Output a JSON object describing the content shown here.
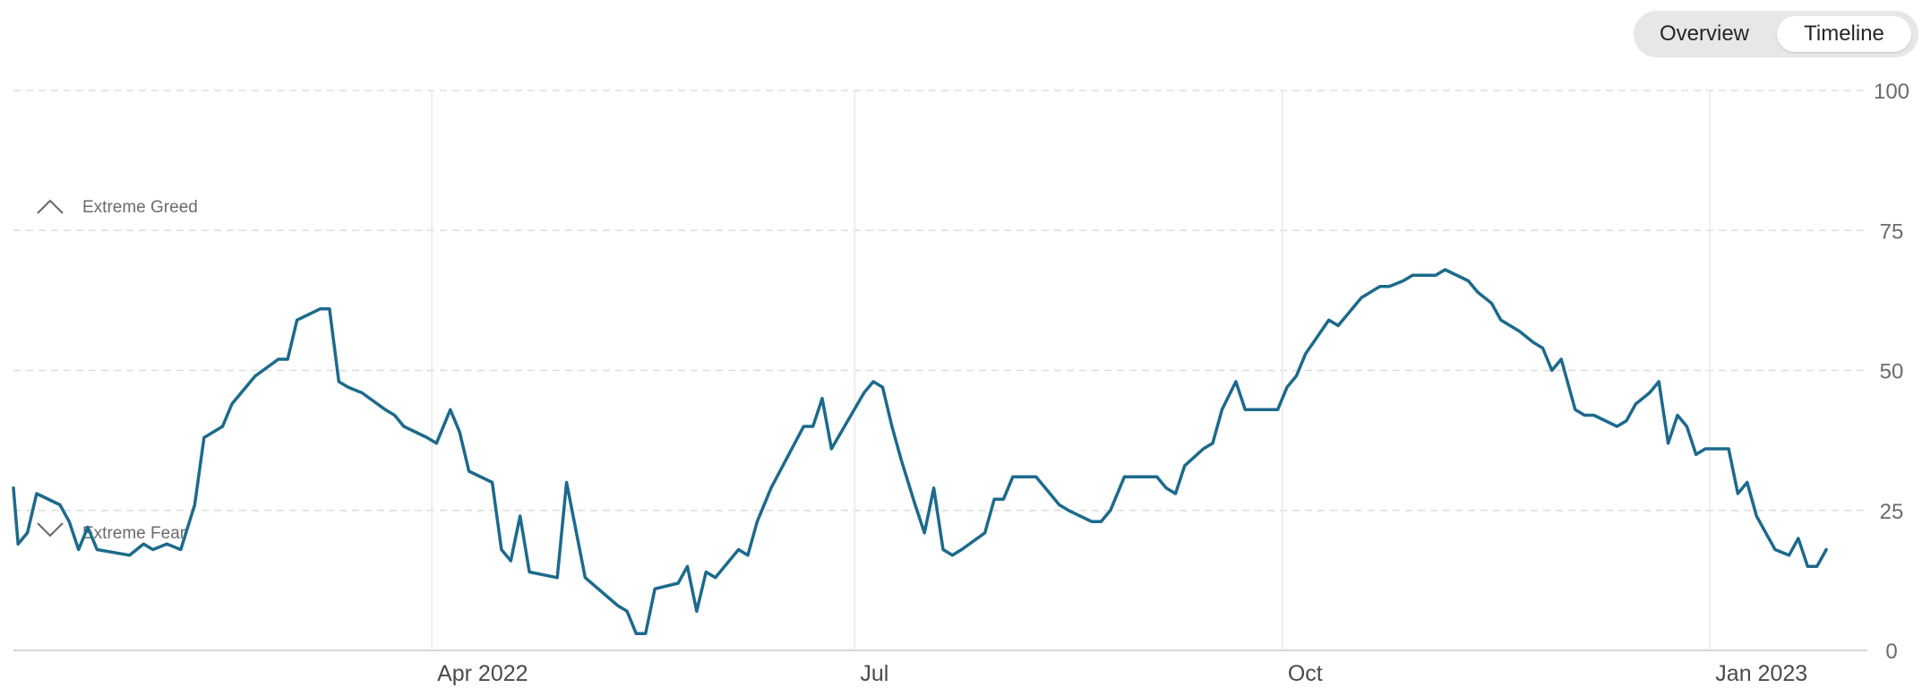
{
  "toggle": {
    "overview_label": "Overview",
    "timeline_label": "Timeline",
    "selected": "Timeline"
  },
  "colors": {
    "line": "#1c6a8c",
    "grid_dashed": "#dddddd",
    "grid_solid": "#e9e9e9",
    "axis": "#c9c9c9"
  },
  "annotations": {
    "greed_label": "Extreme Greed",
    "fear_label": "Extreme Fear"
  },
  "chart_data": {
    "type": "line",
    "title": "",
    "xlabel": "",
    "ylabel": "",
    "ylim": [
      0,
      100
    ],
    "xlim": [
      "2022-01-01",
      "2023-01-31"
    ],
    "y_ticks": [
      0,
      25,
      50,
      75,
      100
    ],
    "y_tick_labels": [
      "0",
      "25",
      "50",
      "75",
      "100"
    ],
    "x_ticks": [
      {
        "date": "2022-04-01",
        "label": "Apr 2022"
      },
      {
        "date": "2022-07-01",
        "label": "Jul"
      },
      {
        "date": "2022-10-01",
        "label": "Oct"
      },
      {
        "date": "2023-01-01",
        "label": "Jan 2023"
      }
    ],
    "grid": true,
    "series": [
      {
        "points": [
          [
            "2022-01-01",
            29
          ],
          [
            "2022-01-02",
            19
          ],
          [
            "2022-01-04",
            21
          ],
          [
            "2022-01-06",
            28
          ],
          [
            "2022-01-11",
            26
          ],
          [
            "2022-01-13",
            23
          ],
          [
            "2022-01-15",
            18
          ],
          [
            "2022-01-17",
            22
          ],
          [
            "2022-01-19",
            18
          ],
          [
            "2022-01-26",
            17
          ],
          [
            "2022-01-29",
            19
          ],
          [
            "2022-01-31",
            18
          ],
          [
            "2022-02-03",
            19
          ],
          [
            "2022-02-06",
            18
          ],
          [
            "2022-02-09",
            26
          ],
          [
            "2022-02-11",
            38
          ],
          [
            "2022-02-13",
            39
          ],
          [
            "2022-02-15",
            40
          ],
          [
            "2022-02-17",
            44
          ],
          [
            "2022-02-19",
            46
          ],
          [
            "2022-02-22",
            49
          ],
          [
            "2022-02-27",
            52
          ],
          [
            "2022-03-01",
            52
          ],
          [
            "2022-03-03",
            59
          ],
          [
            "2022-03-08",
            61
          ],
          [
            "2022-03-10",
            61
          ],
          [
            "2022-03-12",
            48
          ],
          [
            "2022-03-14",
            47
          ],
          [
            "2022-03-17",
            46
          ],
          [
            "2022-03-22",
            43
          ],
          [
            "2022-03-24",
            42
          ],
          [
            "2022-03-26",
            40
          ],
          [
            "2022-03-31",
            38
          ],
          [
            "2022-04-02",
            37
          ],
          [
            "2022-04-05",
            43
          ],
          [
            "2022-04-07",
            39
          ],
          [
            "2022-04-09",
            32
          ],
          [
            "2022-04-14",
            30
          ],
          [
            "2022-04-16",
            18
          ],
          [
            "2022-04-18",
            16
          ],
          [
            "2022-04-20",
            24
          ],
          [
            "2022-04-22",
            14
          ],
          [
            "2022-04-28",
            13
          ],
          [
            "2022-04-30",
            30
          ],
          [
            "2022-05-04",
            13
          ],
          [
            "2022-05-11",
            8
          ],
          [
            "2022-05-13",
            7
          ],
          [
            "2022-05-15",
            3
          ],
          [
            "2022-05-17",
            3
          ],
          [
            "2022-05-19",
            11
          ],
          [
            "2022-05-24",
            12
          ],
          [
            "2022-05-26",
            15
          ],
          [
            "2022-05-28",
            7
          ],
          [
            "2022-05-30",
            14
          ],
          [
            "2022-06-01",
            13
          ],
          [
            "2022-06-06",
            18
          ],
          [
            "2022-06-08",
            17
          ],
          [
            "2022-06-10",
            23
          ],
          [
            "2022-06-13",
            29
          ],
          [
            "2022-06-20",
            40
          ],
          [
            "2022-06-22",
            40
          ],
          [
            "2022-06-24",
            45
          ],
          [
            "2022-06-26",
            36
          ],
          [
            "2022-07-03",
            46
          ],
          [
            "2022-07-05",
            48
          ],
          [
            "2022-07-07",
            47
          ],
          [
            "2022-07-09",
            40
          ],
          [
            "2022-07-11",
            34
          ],
          [
            "2022-07-14",
            26
          ],
          [
            "2022-07-16",
            21
          ],
          [
            "2022-07-18",
            29
          ],
          [
            "2022-07-20",
            18
          ],
          [
            "2022-07-22",
            17
          ],
          [
            "2022-07-24",
            18
          ],
          [
            "2022-07-29",
            21
          ],
          [
            "2022-07-31",
            27
          ],
          [
            "2022-08-02",
            27
          ],
          [
            "2022-08-04",
            31
          ],
          [
            "2022-08-09",
            31
          ],
          [
            "2022-08-11",
            29
          ],
          [
            "2022-08-14",
            26
          ],
          [
            "2022-08-16",
            25
          ],
          [
            "2022-08-21",
            23
          ],
          [
            "2022-08-23",
            23
          ],
          [
            "2022-08-25",
            25
          ],
          [
            "2022-08-28",
            31
          ],
          [
            "2022-09-02",
            31
          ],
          [
            "2022-09-04",
            31
          ],
          [
            "2022-09-06",
            29
          ],
          [
            "2022-09-08",
            28
          ],
          [
            "2022-09-10",
            33
          ],
          [
            "2022-09-14",
            36
          ],
          [
            "2022-09-16",
            37
          ],
          [
            "2022-09-18",
            43
          ],
          [
            "2022-09-21",
            48
          ],
          [
            "2022-09-23",
            43
          ],
          [
            "2022-09-28",
            43
          ],
          [
            "2022-09-30",
            43
          ],
          [
            "2022-10-02",
            47
          ],
          [
            "2022-10-04",
            49
          ],
          [
            "2022-10-06",
            53
          ],
          [
            "2022-10-11",
            59
          ],
          [
            "2022-10-13",
            58
          ],
          [
            "2022-10-15",
            60
          ],
          [
            "2022-10-18",
            63
          ],
          [
            "2022-10-20",
            64
          ],
          [
            "2022-10-22",
            65
          ],
          [
            "2022-10-24",
            65
          ],
          [
            "2022-10-27",
            66
          ],
          [
            "2022-10-29",
            67
          ],
          [
            "2022-10-31",
            67
          ],
          [
            "2022-11-03",
            67
          ],
          [
            "2022-11-05",
            68
          ],
          [
            "2022-11-10",
            66
          ],
          [
            "2022-11-12",
            64
          ],
          [
            "2022-11-15",
            62
          ],
          [
            "2022-11-17",
            59
          ],
          [
            "2022-11-19",
            58
          ],
          [
            "2022-11-21",
            57
          ],
          [
            "2022-11-24",
            55
          ],
          [
            "2022-11-26",
            54
          ],
          [
            "2022-11-28",
            50
          ],
          [
            "2022-11-30",
            52
          ],
          [
            "2022-12-03",
            43
          ],
          [
            "2022-12-05",
            42
          ],
          [
            "2022-12-07",
            42
          ],
          [
            "2022-12-12",
            40
          ],
          [
            "2022-12-14",
            41
          ],
          [
            "2022-12-16",
            44
          ],
          [
            "2022-12-19",
            46
          ],
          [
            "2022-12-21",
            48
          ],
          [
            "2022-12-23",
            37
          ],
          [
            "2022-12-25",
            42
          ],
          [
            "2022-12-27",
            40
          ],
          [
            "2022-12-29",
            35
          ],
          [
            "2022-12-31",
            36
          ],
          [
            "2023-01-02",
            36
          ],
          [
            "2023-01-05",
            36
          ],
          [
            "2023-01-07",
            28
          ],
          [
            "2023-01-09",
            30
          ],
          [
            "2023-01-11",
            24
          ],
          [
            "2023-01-13",
            21
          ],
          [
            "2023-01-15",
            18
          ],
          [
            "2023-01-18",
            17
          ],
          [
            "2023-01-20",
            20
          ],
          [
            "2023-01-22",
            15
          ],
          [
            "2023-01-24",
            15
          ],
          [
            "2023-01-26",
            18
          ]
        ]
      }
    ],
    "annotations": [
      {
        "label": "Extreme Greed",
        "marker": "up-chevron"
      },
      {
        "label": "Extreme Fear",
        "marker": "down-chevron"
      }
    ]
  }
}
